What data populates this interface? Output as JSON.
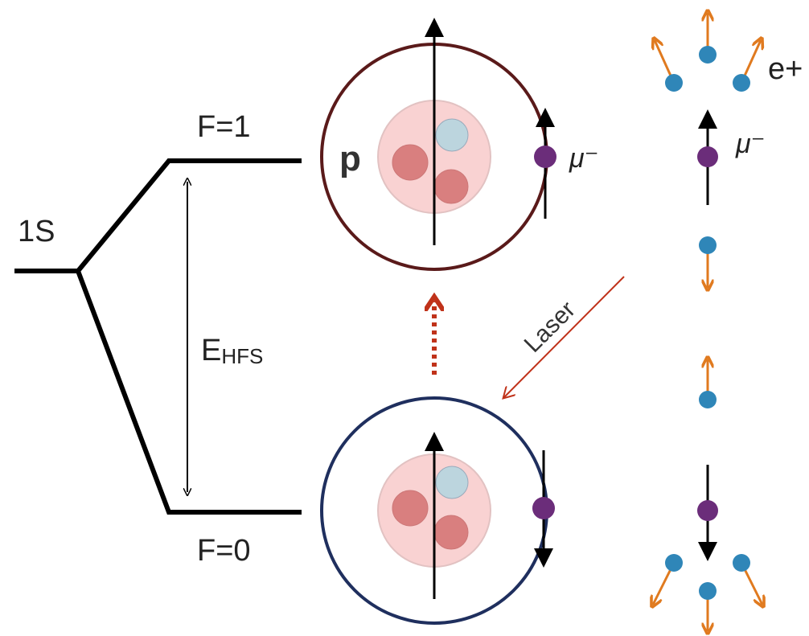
{
  "levels": {
    "ground": "1S",
    "upper": "F=1",
    "lower": "F=0",
    "splitting": "E",
    "splitting_sub": "HFS"
  },
  "atom": {
    "proton": "p",
    "muon": "μ⁻"
  },
  "laser": "Laser",
  "decay": {
    "muon": "μ⁻",
    "electron": "e+"
  }
}
